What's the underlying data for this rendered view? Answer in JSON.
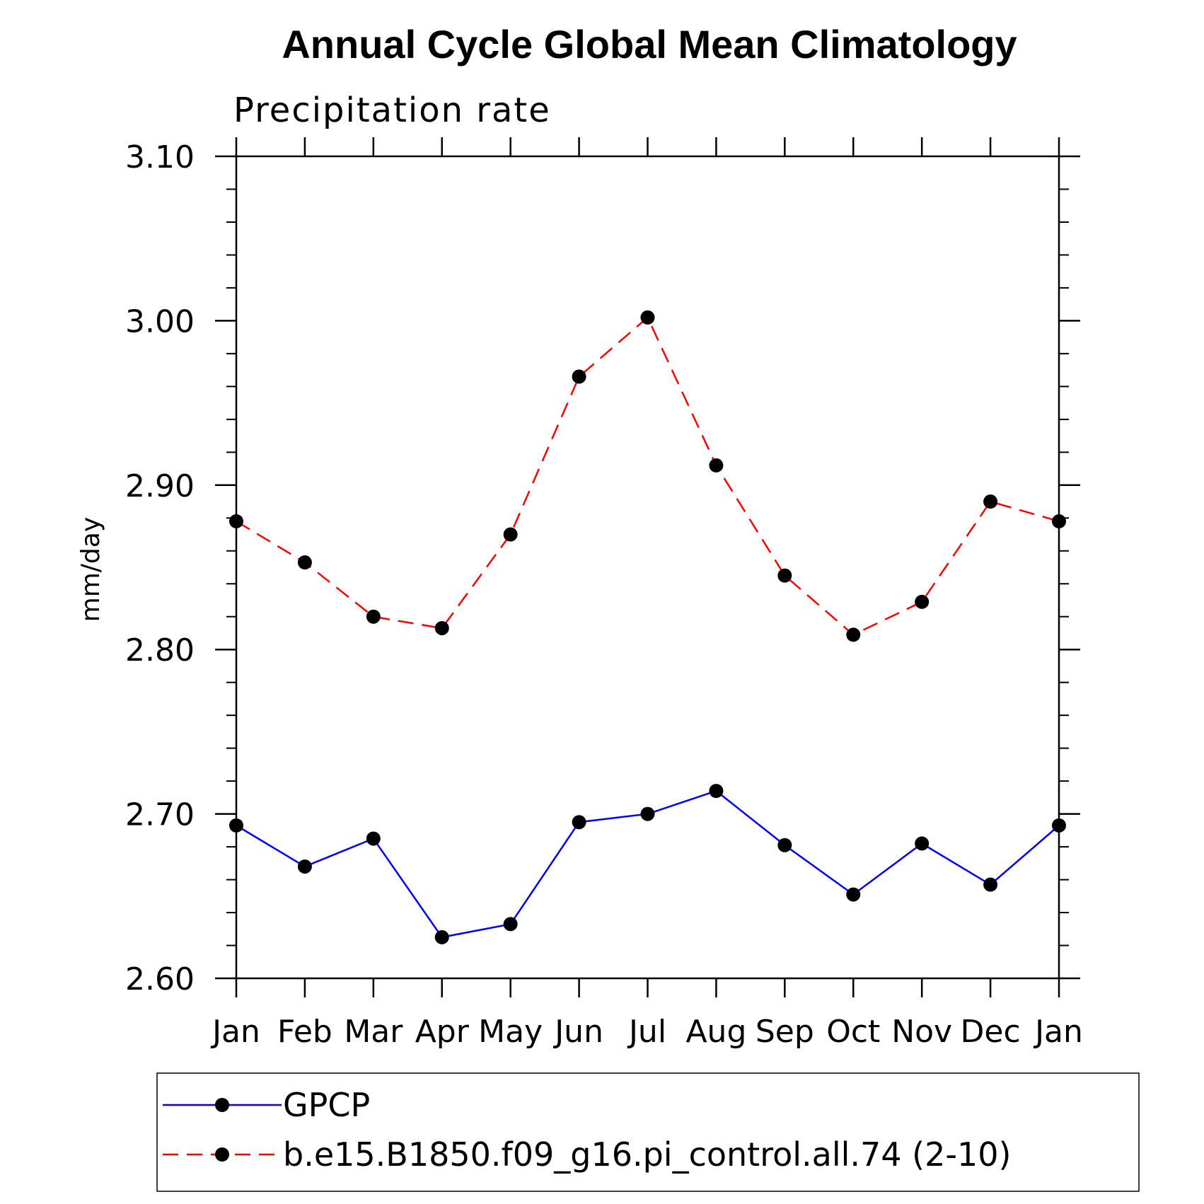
{
  "chart_data": {
    "type": "line",
    "title": "Annual Cycle Global Mean Climatology",
    "subtitle": "Precipitation rate",
    "ylabel": "mm/day",
    "xlabel": "",
    "categories": [
      "Jan",
      "Feb",
      "Mar",
      "Apr",
      "May",
      "Jun",
      "Jul",
      "Aug",
      "Sep",
      "Oct",
      "Nov",
      "Dec",
      "Jan"
    ],
    "ylim": [
      2.6,
      3.1
    ],
    "yticks": [
      "2.60",
      "2.70",
      "2.80",
      "2.90",
      "3.00",
      "3.10"
    ],
    "ytick_values": [
      2.6,
      2.7,
      2.8,
      2.9,
      3.0,
      3.1
    ],
    "grid": false,
    "legend_position": "bottom",
    "series": [
      {
        "name": "GPCP",
        "color": "#0000ff",
        "line_style": "solid",
        "marker": "filled-circle",
        "values": [
          2.693,
          2.668,
          2.685,
          2.625,
          2.633,
          2.695,
          2.7,
          2.714,
          2.681,
          2.651,
          2.682,
          2.657,
          2.693
        ]
      },
      {
        "name": "b.e15.B1850.f09_g16.pi_control.all.74 (2-10)",
        "color": "#ff0000",
        "line_style": "dashed",
        "marker": "filled-circle",
        "values": [
          2.878,
          2.853,
          2.82,
          2.813,
          2.87,
          2.966,
          3.002,
          2.912,
          2.845,
          2.809,
          2.829,
          2.89,
          2.878
        ]
      }
    ]
  }
}
